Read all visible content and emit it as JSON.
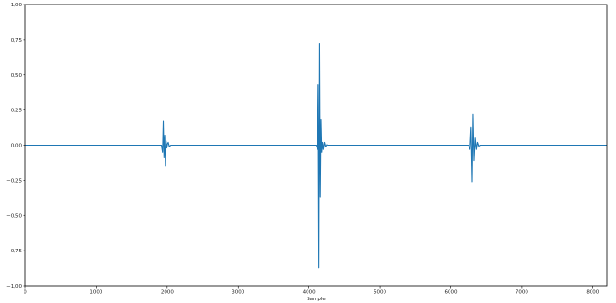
{
  "chart_data": {
    "type": "line",
    "title": "",
    "xlabel": "Sample",
    "ylabel": "",
    "xlim": [
      0,
      8200
    ],
    "ylim": [
      -1.0,
      1.0
    ],
    "grid": false,
    "legend": "none",
    "x_ticks": [
      0,
      1000,
      2000,
      3000,
      4000,
      5000,
      6000,
      7000,
      8000
    ],
    "x_tick_labels": [
      "0",
      "1000",
      "2000",
      "3000",
      "4000",
      "5000",
      "6000",
      "7000",
      "8000"
    ],
    "y_ticks": [
      1.0,
      0.75,
      0.5,
      0.25,
      0.0,
      -0.25,
      -0.5,
      -0.75,
      -1.0
    ],
    "y_tick_labels": [
      "1,00",
      "0,75",
      "0,50",
      "0,25",
      "0,00",
      "−0,25",
      "−0,50",
      "−0,75",
      "−1,00"
    ],
    "series": [
      {
        "color": "#1f77b4",
        "x": [
          0,
          1920,
          1935,
          1945,
          1955,
          1965,
          1975,
          1985,
          1995,
          2005,
          2015,
          2030,
          2050,
          4100,
          4120,
          4130,
          4140,
          4150,
          4160,
          4170,
          4180,
          4190,
          4200,
          4215,
          4230,
          4250,
          4270,
          6250,
          6270,
          6285,
          6300,
          6312,
          6325,
          6340,
          6355,
          6370,
          6390,
          6420,
          8200
        ],
        "y": [
          0,
          0,
          -0.05,
          0.17,
          -0.09,
          0.07,
          -0.15,
          0.03,
          -0.02,
          0.01,
          0.02,
          -0.01,
          0,
          0,
          -0.03,
          0.43,
          -0.87,
          0.72,
          -0.37,
          0.18,
          -0.05,
          0.02,
          -0.03,
          0.02,
          -0.01,
          0.005,
          0,
          0,
          -0.03,
          0.13,
          -0.26,
          0.22,
          -0.11,
          0.05,
          -0.03,
          0.02,
          -0.01,
          0,
          0
        ]
      }
    ]
  }
}
